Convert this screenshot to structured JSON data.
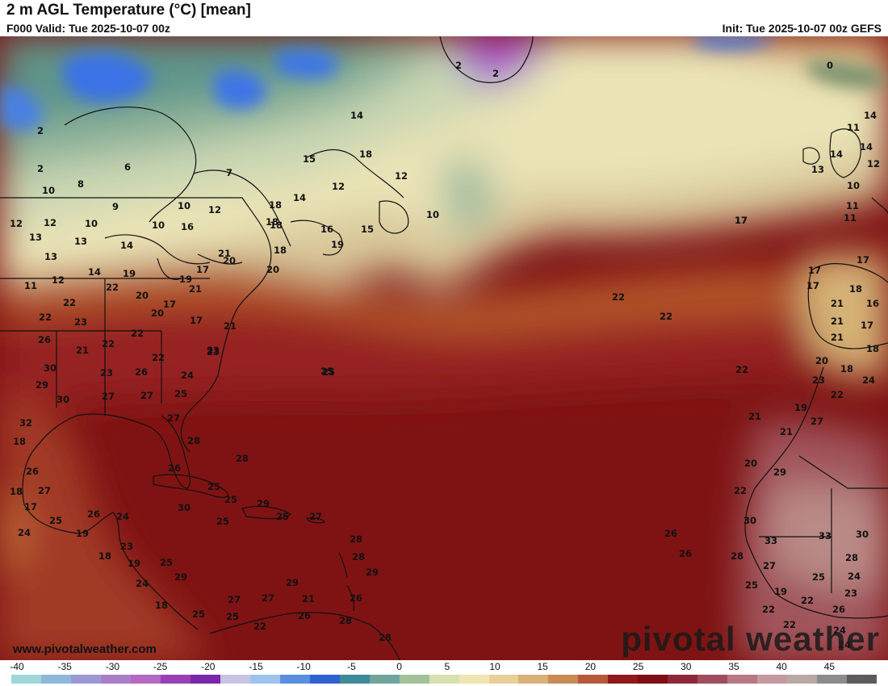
{
  "header": {
    "title": "2 m AGL Temperature (°C) [mean]",
    "valid": "F000 Valid: Tue 2025-10-07 00z",
    "init": "Init: Tue 2025-10-07 00z GEFS"
  },
  "footer": {
    "watermark": "www.pivotalweather.com",
    "brand": "pivotal weather"
  },
  "legend": {
    "ticks": [
      "-40",
      "-35",
      "-30",
      "-25",
      "-20",
      "-15",
      "-10",
      "-5",
      "0",
      "5",
      "10",
      "15",
      "20",
      "25",
      "30",
      "35",
      "40",
      "45"
    ],
    "colors": [
      "#9fd6d8",
      "#8fb8d8",
      "#9c98d4",
      "#a97fc8",
      "#b468c2",
      "#9b3fb5",
      "#7a2aa8",
      "#c9c3e6",
      "#9ec3ec",
      "#5a8ee0",
      "#2f63d0",
      "#3f8a9a",
      "#6fa59a",
      "#a4c29a",
      "#d8e2b0",
      "#efe6b4",
      "#e8cf98",
      "#d8b07a",
      "#c98a55",
      "#b45a3a",
      "#8e1a1a",
      "#7d0f14",
      "#8a2a3a",
      "#a04d5f",
      "#b87884",
      "#c49aa0",
      "#b8a8a6",
      "#8c8c8c",
      "#5c5c5c"
    ]
  },
  "map": {
    "labels": [
      {
        "t": "2"
      },
      {
        "t": "2"
      },
      {
        "t": "6"
      },
      {
        "t": "7"
      },
      {
        "t": "10"
      },
      {
        "t": "8"
      },
      {
        "t": "9"
      },
      {
        "t": "10"
      },
      {
        "t": "12"
      },
      {
        "t": "12"
      },
      {
        "t": "12"
      },
      {
        "t": "13"
      },
      {
        "t": "13"
      },
      {
        "t": "10"
      },
      {
        "t": "10"
      },
      {
        "t": "16"
      },
      {
        "t": "14"
      },
      {
        "t": "13"
      },
      {
        "t": "11"
      },
      {
        "t": "12"
      },
      {
        "t": "14"
      },
      {
        "t": "19"
      },
      {
        "t": "22"
      },
      {
        "t": "20"
      },
      {
        "t": "22"
      },
      {
        "t": "22"
      },
      {
        "t": "23"
      },
      {
        "t": "20"
      },
      {
        "t": "21"
      },
      {
        "t": "17"
      },
      {
        "t": "26"
      },
      {
        "t": "21"
      },
      {
        "t": "22"
      },
      {
        "t": "22"
      },
      {
        "t": "30"
      },
      {
        "t": "29"
      },
      {
        "t": "23"
      },
      {
        "t": "26"
      },
      {
        "t": "22"
      },
      {
        "t": "23"
      },
      {
        "t": "24"
      },
      {
        "t": "30"
      },
      {
        "t": "27"
      },
      {
        "t": "27"
      },
      {
        "t": "25"
      },
      {
        "t": "27"
      },
      {
        "t": "28"
      },
      {
        "t": "32"
      },
      {
        "t": "18"
      },
      {
        "t": "26"
      },
      {
        "t": "18"
      },
      {
        "t": "27"
      },
      {
        "t": "17"
      },
      {
        "t": "25"
      },
      {
        "t": "26"
      },
      {
        "t": "24"
      },
      {
        "t": "24"
      },
      {
        "t": "19"
      },
      {
        "t": "23"
      },
      {
        "t": "18"
      },
      {
        "t": "19"
      },
      {
        "t": "25"
      },
      {
        "t": "24"
      },
      {
        "t": "29"
      },
      {
        "t": "18"
      },
      {
        "t": "25"
      },
      {
        "t": "25"
      },
      {
        "t": "28"
      },
      {
        "t": "26"
      },
      {
        "t": "25"
      },
      {
        "t": "30"
      },
      {
        "t": "25"
      },
      {
        "t": "25"
      },
      {
        "t": "29"
      },
      {
        "t": "25"
      },
      {
        "t": "27"
      },
      {
        "t": "28"
      },
      {
        "t": "28"
      },
      {
        "t": "29"
      },
      {
        "t": "29"
      },
      {
        "t": "27"
      },
      {
        "t": "27"
      },
      {
        "t": "21"
      },
      {
        "t": "26"
      },
      {
        "t": "22"
      },
      {
        "t": "26"
      },
      {
        "t": "28"
      },
      {
        "t": "28"
      },
      {
        "t": "25"
      },
      {
        "t": "14"
      },
      {
        "t": "18"
      },
      {
        "t": "15"
      },
      {
        "t": "18"
      },
      {
        "t": "12"
      },
      {
        "t": "14"
      },
      {
        "t": "12"
      },
      {
        "t": "18"
      },
      {
        "t": "18"
      },
      {
        "t": "16"
      },
      {
        "t": "15"
      },
      {
        "t": "19"
      },
      {
        "t": "18"
      },
      {
        "t": "20"
      },
      {
        "t": "17"
      },
      {
        "t": "21"
      },
      {
        "t": "19"
      },
      {
        "t": "20"
      },
      {
        "t": "17"
      },
      {
        "t": "21"
      },
      {
        "t": "23"
      },
      {
        "t": "10"
      },
      {
        "t": "2"
      },
      {
        "t": "2"
      },
      {
        "t": "25"
      },
      {
        "t": "22"
      },
      {
        "t": "22"
      },
      {
        "t": "17"
      },
      {
        "t": "22"
      },
      {
        "t": "21"
      },
      {
        "t": "0"
      },
      {
        "t": "14"
      },
      {
        "t": "11"
      },
      {
        "t": "14"
      },
      {
        "t": "14"
      },
      {
        "t": "13"
      },
      {
        "t": "12"
      },
      {
        "t": "10"
      },
      {
        "t": "11"
      },
      {
        "t": "11"
      },
      {
        "t": "17"
      },
      {
        "t": "17"
      },
      {
        "t": "17"
      },
      {
        "t": "17"
      },
      {
        "t": "18"
      },
      {
        "t": "21"
      },
      {
        "t": "16"
      },
      {
        "t": "21"
      },
      {
        "t": "17"
      },
      {
        "t": "21"
      },
      {
        "t": "18"
      },
      {
        "t": "20"
      },
      {
        "t": "18"
      },
      {
        "t": "23"
      },
      {
        "t": "24"
      },
      {
        "t": "22"
      },
      {
        "t": "19"
      },
      {
        "t": "27"
      },
      {
        "t": "21"
      },
      {
        "t": "20"
      },
      {
        "t": "29"
      },
      {
        "t": "22"
      },
      {
        "t": "30"
      },
      {
        "t": "33"
      },
      {
        "t": "33"
      },
      {
        "t": "30"
      },
      {
        "t": "26"
      },
      {
        "t": "26"
      },
      {
        "t": "28"
      },
      {
        "t": "28"
      },
      {
        "t": "27"
      },
      {
        "t": "25"
      },
      {
        "t": "24"
      },
      {
        "t": "25"
      },
      {
        "t": "19"
      },
      {
        "t": "22"
      },
      {
        "t": "23"
      },
      {
        "t": "22"
      },
      {
        "t": "26"
      },
      {
        "t": "22"
      },
      {
        "t": "24"
      },
      {
        "t": "24"
      }
    ]
  }
}
